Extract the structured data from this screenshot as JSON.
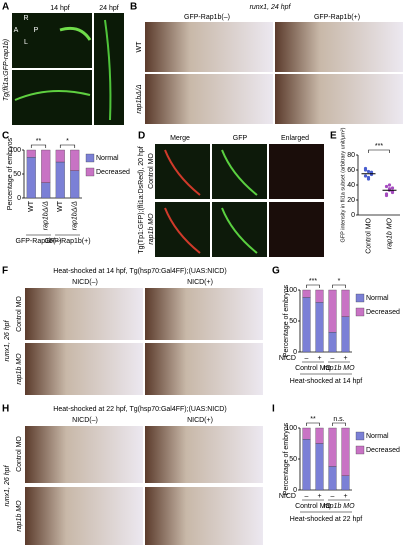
{
  "panel_labels": [
    "A",
    "B",
    "C",
    "D",
    "E",
    "F",
    "G",
    "H",
    "I"
  ],
  "panel_a": {
    "times": [
      "14 hpf",
      "24 hpf"
    ],
    "axes": [
      "R",
      "A",
      "P",
      "L"
    ],
    "side_label": "Tg(fli1a:GFP-rap1b)"
  },
  "panel_b": {
    "title": "runx1, 24 hpf",
    "columns": [
      "GFP-Rap1b(–)",
      "GFP-Rap1b(+)"
    ],
    "rows": [
      "WT",
      "rap1bΔ/Δ"
    ]
  },
  "panel_d": {
    "columns": [
      "Merge",
      "GFP",
      "Enlarged"
    ],
    "side_label": "Tg(Tp1:GFP);(fli1a:DsRed), 20 hpf",
    "rows": [
      "Control MO",
      "rap1b MO"
    ]
  },
  "panel_f": {
    "title": "Heat-shocked at 14 hpf, Tg(hsp70:Gal4FF);(UAS:NICD)",
    "columns": [
      "NICD(–)",
      "NICD(+)"
    ],
    "side_label": "runx1, 26 hpf",
    "rows": [
      "Control MO",
      "rap1b MO"
    ]
  },
  "panel_h": {
    "title": "Heat-shocked at 22 hpf, Tg(hsp70:Gal4FF);(UAS:NICD)",
    "columns": [
      "NICD(–)",
      "NICD(+)"
    ],
    "side_label": "runx1, 26 hpf",
    "rows": [
      "Control MO",
      "rap1b MO"
    ]
  },
  "chart_data": [
    {
      "type": "bar",
      "stacked": true,
      "ylabel": "Percentage of embryos",
      "categories": [
        "WT",
        "rap1bΔ/Δ",
        "WT",
        "rap1bΔ/Δ"
      ],
      "groups": [
        "GFP-Rap1b(–)",
        "GFP-Rap1b(+)"
      ],
      "series": [
        {
          "name": "Normal",
          "color": "#7b80d6",
          "values": [
            85,
            32,
            75,
            57
          ]
        },
        {
          "name": "Decreased",
          "color": "#c873c4",
          "values": [
            15,
            68,
            25,
            43
          ]
        }
      ],
      "ylim": [
        0,
        100
      ],
      "yticks": [
        0,
        50,
        100
      ],
      "significance": [
        "**",
        "*"
      ]
    },
    {
      "type": "dot",
      "ylabel": "GFP intensity in fli1a subset (arbitrary unit/μm²)",
      "categories": [
        "Control MO",
        "rap1b MO"
      ],
      "colors": [
        "#4a5fd0",
        "#a54cc0"
      ],
      "points": [
        [
          62,
          58,
          55,
          52,
          50,
          57,
          60,
          48,
          54
        ],
        [
          38,
          35,
          30,
          28,
          33,
          36,
          26,
          40,
          31
        ]
      ],
      "means": [
        55,
        33
      ],
      "ylim": [
        0,
        80
      ],
      "yticks": [
        0,
        20,
        40,
        60,
        80
      ],
      "significance": [
        "***"
      ]
    },
    {
      "type": "bar",
      "stacked": true,
      "ylabel": "Percentage of embryos",
      "categories": [
        "–",
        "+",
        "–",
        "+"
      ],
      "row_label": "NICD",
      "groups": [
        "Control MO",
        "rap1b MO"
      ],
      "xlabel": "Heat-shocked at 14 hpf",
      "series": [
        {
          "name": "Normal",
          "color": "#7b80d6",
          "values": [
            88,
            80,
            32,
            57
          ]
        },
        {
          "name": "Decreased",
          "color": "#c873c4",
          "values": [
            12,
            20,
            68,
            43
          ]
        }
      ],
      "ylim": [
        0,
        100
      ],
      "yticks": [
        0,
        50,
        100
      ],
      "significance": [
        "***",
        "*"
      ]
    },
    {
      "type": "bar",
      "stacked": true,
      "ylabel": "Percentage of embryos",
      "categories": [
        "–",
        "+",
        "–",
        "+"
      ],
      "row_label": "NICD",
      "groups": [
        "Control MO",
        "rap1b MO"
      ],
      "xlabel": "Heat-shocked at 22 hpf",
      "series": [
        {
          "name": "Normal",
          "color": "#7b80d6",
          "values": [
            82,
            75,
            38,
            23
          ]
        },
        {
          "name": "Decreased",
          "color": "#c873c4",
          "values": [
            18,
            25,
            62,
            77
          ]
        }
      ],
      "ylim": [
        0,
        100
      ],
      "yticks": [
        0,
        50,
        100
      ],
      "significance": [
        "**",
        "n.s."
      ]
    }
  ]
}
